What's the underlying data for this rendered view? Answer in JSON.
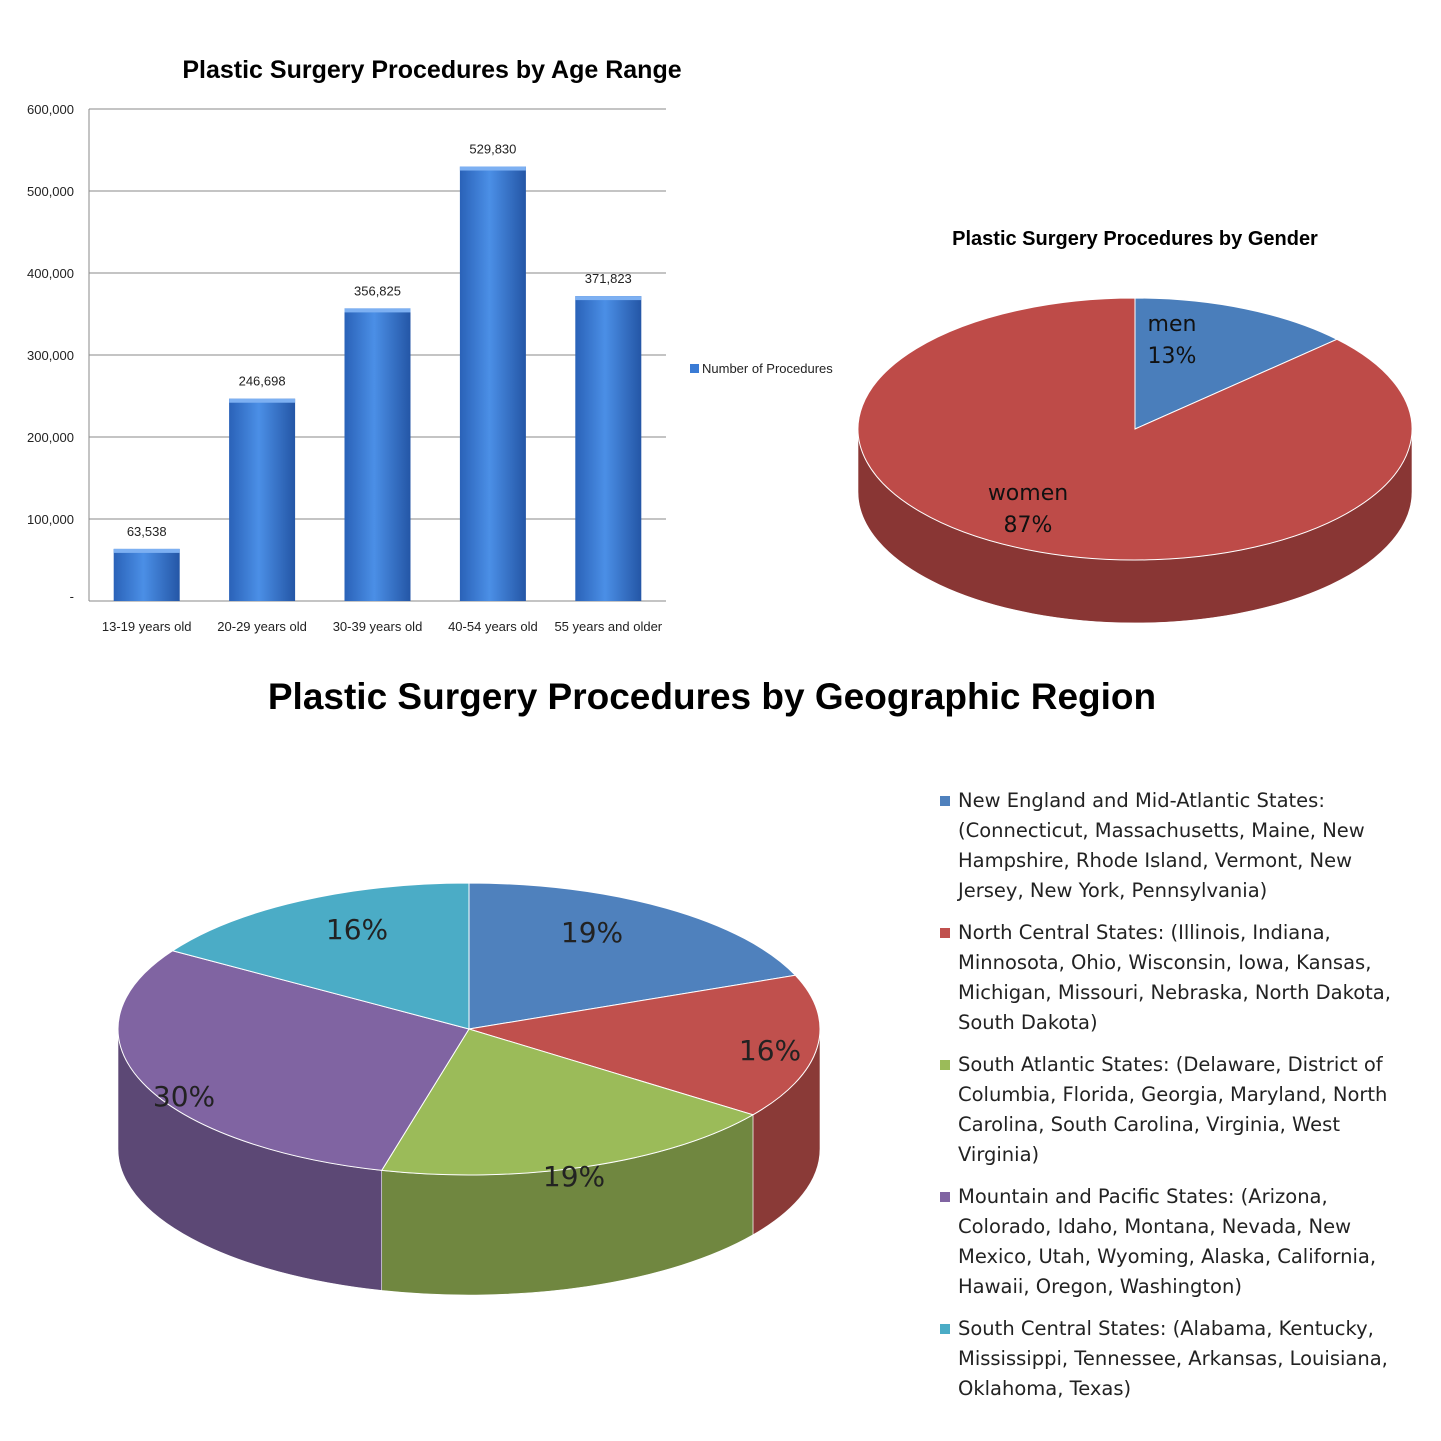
{
  "chart_data": [
    {
      "type": "bar",
      "title": "Plastic Surgery Procedures by Age Range",
      "categories": [
        "13-19 years old",
        "20-29 years old",
        "30-39 years old",
        "40-54 years old",
        "55 years and older"
      ],
      "series": [
        {
          "name": "Number of Procedures",
          "values": [
            63538,
            246698,
            356825,
            529830,
            371823
          ],
          "color": "#3a7bd5"
        }
      ],
      "data_labels": [
        "63,538",
        "246,698",
        "356,825",
        "529,830",
        "371,823"
      ],
      "y_ticks": [
        {
          "value": 0,
          "label": "-"
        },
        {
          "value": 100000,
          "label": "100,000"
        },
        {
          "value": 200000,
          "label": "200,000"
        },
        {
          "value": 300000,
          "label": "300,000"
        },
        {
          "value": 400000,
          "label": "400,000"
        },
        {
          "value": 500000,
          "label": "500,000"
        },
        {
          "value": 600000,
          "label": "600,000"
        }
      ],
      "ylim": [
        0,
        600000
      ],
      "grid": true,
      "legend": "right"
    },
    {
      "type": "pie",
      "title": "Plastic Surgery Procedures by Gender",
      "slices": [
        {
          "label": "men",
          "value": 13,
          "value_label": "13%",
          "color": "#4a7ebb"
        },
        {
          "label": "women",
          "value": 87,
          "value_label": "87%",
          "color": "#be4b48"
        }
      ],
      "legend": "none"
    },
    {
      "type": "pie",
      "title": "Plastic Surgery Procedures by Geographic Region",
      "slices": [
        {
          "label": "New England and Mid-Atlantic States: (Connecticut, Massachusetts, Maine, New Hampshire, Rhode Island, Vermont, New Jersey, New York, Pennsylvania)",
          "value": 19,
          "value_label": "19%",
          "color": "#4f81bd"
        },
        {
          "label": "North Central States: (Illinois, Indiana, Minnosota, Ohio, Wisconsin, Iowa, Kansas, Michigan, Missouri, Nebraska, North Dakota, South Dakota)",
          "value": 16,
          "value_label": "16%",
          "color": "#c0504d"
        },
        {
          "label": "South Atlantic States: (Delaware, District of Columbia, Florida, Georgia, Maryland, North Carolina, South Carolina, Virginia, West Virginia)",
          "value": 19,
          "value_label": "19%",
          "color": "#9bbb59"
        },
        {
          "label": "Mountain and Pacific States: (Arizona, Colorado, Idaho, Montana, Nevada, New Mexico, Utah, Wyoming, Alaska, California, Hawaii, Oregon, Washington)",
          "value": 30,
          "value_label": "30%",
          "color": "#8064a2"
        },
        {
          "label": "South Central States: (Alabama, Kentucky, Mississippi, Tennessee, Arkansas, Louisiana, Oklahoma, Texas)",
          "value": 16,
          "value_label": "16%",
          "color": "#4bacc6"
        }
      ],
      "legend": "right"
    }
  ]
}
